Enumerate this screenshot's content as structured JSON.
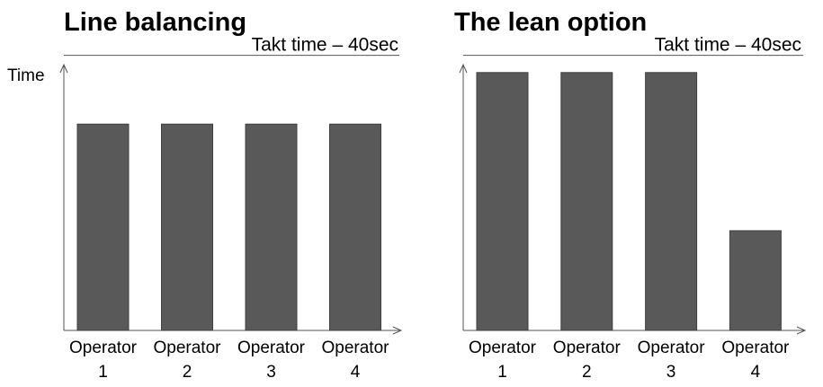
{
  "chart_data": [
    {
      "type": "bar",
      "title": "Line balancing",
      "ylabel": "Time",
      "xlabel": "",
      "reference_line": {
        "label": "Takt time – 40sec",
        "value": 40
      },
      "categories": [
        [
          "Operator",
          "1"
        ],
        [
          "Operator",
          "2"
        ],
        [
          "Operator",
          "3"
        ],
        [
          "Operator",
          "4"
        ]
      ],
      "values": [
        30,
        30,
        30,
        30
      ],
      "ylim": [
        0,
        44
      ],
      "bar_color": "#595959",
      "grid": false
    },
    {
      "type": "bar",
      "title": "The lean option",
      "ylabel": "",
      "xlabel": "",
      "reference_line": {
        "label": "Takt time – 40sec",
        "value": 40
      },
      "categories": [
        [
          "Operator",
          "1"
        ],
        [
          "Operator",
          "2"
        ],
        [
          "Operator",
          "3"
        ],
        [
          "Operator",
          "4"
        ]
      ],
      "values": [
        37.5,
        37.5,
        37.5,
        14.5
      ],
      "ylim": [
        0,
        44
      ],
      "bar_color": "#595959",
      "grid": false
    }
  ]
}
